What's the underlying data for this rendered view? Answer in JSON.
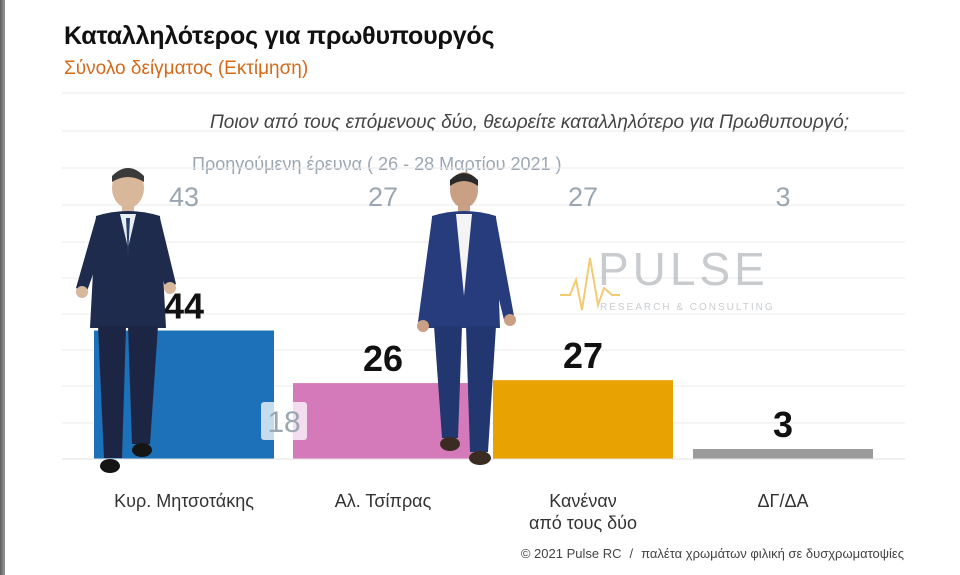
{
  "title": "Καταλληλότερος για πρωθυπουργός",
  "subtitle": "Σύνολο δείγματος   (Εκτίμηση)",
  "question": "Ποιον από τους επόμενους δύο, θεωρείτε καταλληλότερο για Πρωθυπουργό;",
  "previous_survey_label": "Προηγούμενη έρευνα  ( 26 - 28 Μαρτίου 2021 )",
  "watermark": {
    "word": "PULSE",
    "tagline": "RESEARCH & CONSULTING"
  },
  "footer": {
    "copyright": "© 2021 Pulse RC",
    "separator": "/",
    "note": "παλέτα χρωμάτων φιλική σε δυσχρωματοψίες"
  },
  "chart_data": {
    "type": "bar",
    "categories": [
      "Κυρ. Μητσοτάκης",
      "Αλ. Τσίπρας",
      "Κανέναν από τους δύο",
      "ΔΓ/ΔΑ"
    ],
    "category_lines": [
      [
        "Κυρ. Μητσοτάκης"
      ],
      [
        "Αλ. Τσίπρας"
      ],
      [
        "Κανέναν",
        "από τους δύο"
      ],
      [
        "ΔΓ/ΔΑ"
      ]
    ],
    "series": [
      {
        "values": [
          44,
          26,
          27,
          3
        ],
        "colors": [
          "#1d71b8",
          "#d47aba",
          "#e8a202",
          "#9b9b9b"
        ]
      },
      {
        "values": [
          43,
          27,
          27,
          3
        ]
      }
    ],
    "value_labels": [
      "44",
      "26",
      "27",
      "3"
    ],
    "previous_labels": [
      "43",
      "27",
      "27",
      "3"
    ],
    "overlay_label": "18",
    "ylim": [
      0,
      50
    ],
    "grid": true,
    "legend": "none"
  }
}
